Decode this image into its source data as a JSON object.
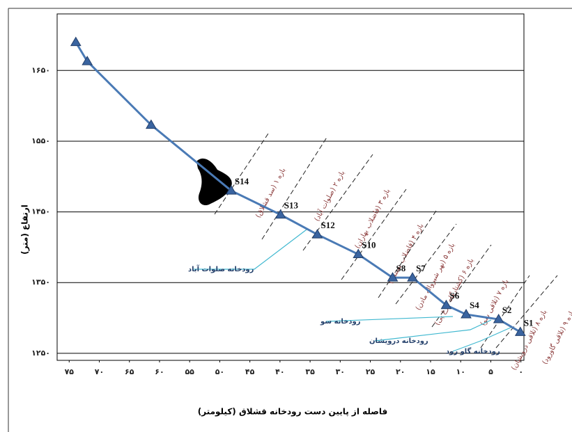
{
  "chart_data": {
    "type": "line",
    "x_label": "فاصله از پایین دست رودخانه قشلاق (کیلومتر)",
    "y_label": "ارتفاع (متر)",
    "xlim": [
      77,
      -0.5
    ],
    "ylim": [
      1240,
      1730
    ],
    "xticks": [
      {
        "value": 75,
        "label": "۷۵"
      },
      {
        "value": 70,
        "label": "۷۰"
      },
      {
        "value": 65,
        "label": "۶۵"
      },
      {
        "value": 60,
        "label": "۶۰"
      },
      {
        "value": 55,
        "label": "۵۵"
      },
      {
        "value": 50,
        "label": "۵۰"
      },
      {
        "value": 45,
        "label": "۴۵"
      },
      {
        "value": 40,
        "label": "۴۰"
      },
      {
        "value": 35,
        "label": "۳۵"
      },
      {
        "value": 30,
        "label": "۳۰"
      },
      {
        "value": 25,
        "label": "۲۵"
      },
      {
        "value": 20,
        "label": "۲۰"
      },
      {
        "value": 15,
        "label": "۱۵"
      },
      {
        "value": 10,
        "label": "۱۰"
      },
      {
        "value": 5,
        "label": "۵"
      },
      {
        "value": 0,
        "label": "۰"
      }
    ],
    "yticks": [
      {
        "value": 1250,
        "label": "۱۲۵۰"
      },
      {
        "value": 1350,
        "label": "۱۳۵۰"
      },
      {
        "value": 1450,
        "label": "۱۴۵۰"
      },
      {
        "value": 1550,
        "label": "۱۵۵۰"
      },
      {
        "value": 1650,
        "label": "۱۶۵۰"
      }
    ],
    "grid": true,
    "series": [
      {
        "color": "#4a7ab5",
        "x": [
          73.9,
          72.0,
          61.4,
          48.1,
          39.9,
          33.8,
          27.0,
          21.3,
          18.0,
          12.4,
          9.1,
          3.7,
          0.1
        ],
        "values": [
          1690,
          1663,
          1573,
          1480,
          1446,
          1418,
          1390,
          1357,
          1357,
          1318,
          1305,
          1298,
          1280
        ],
        "point_labels": [
          null,
          null,
          null,
          "S14",
          "S13",
          "S12",
          "S10",
          "S8",
          "S7",
          "S6",
          "S4",
          "S2",
          "S1"
        ]
      }
    ],
    "reaches": [
      "بازه ۱ (سد قشلاق)",
      "بازه ۲ (صلوات آباد)",
      "بازه ۳ (فاضلاب بهاران)",
      "بازه ۴ (فاضلاب سنندج)",
      "بازه ۵ (نهر شیرواله مادن)",
      "بازه ۶ (کشتارگاه مرغ پی)",
      "بازه ۷ (تلاقی سو)",
      "بازه ۸ (تلاقی درویشان)",
      "بازه ۹ (تلاقی گاورود)"
    ],
    "rivers": [
      "رودخانه صلوات آباد",
      "رودخانه سو",
      "رودخانه درویشان",
      "رودخانه گاو رود"
    ]
  }
}
